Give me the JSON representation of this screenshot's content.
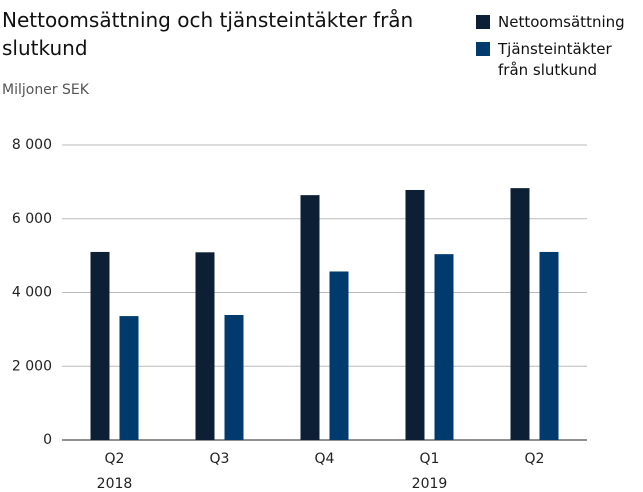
{
  "chart_data": {
    "type": "bar",
    "title": "Nettoomsättning och tjänsteintäkter från slutkund",
    "subtitle": "Miljoner SEK",
    "categories": [
      "Q2",
      "Q3",
      "Q4",
      "Q1",
      "Q2"
    ],
    "year_labels": [
      "2018",
      null,
      null,
      "2019",
      null
    ],
    "series": [
      {
        "name": "Nettoomsättning",
        "color": "#0c1f35",
        "values": [
          5100,
          5090,
          6640,
          6780,
          6830
        ]
      },
      {
        "name": "Tjänsteintäkter från slutkund",
        "color": "#013a6c",
        "values": [
          3360,
          3390,
          4570,
          5040,
          5100
        ]
      }
    ],
    "ylim": [
      0,
      8000
    ],
    "yticks": [
      0,
      {
        "value": 2000,
        "label": "2 000"
      },
      {
        "value": 4000,
        "label": "4 000"
      },
      {
        "value": 6000,
        "label": "6 000"
      },
      {
        "value": 8000,
        "label": "8 000"
      }
    ],
    "grid": true,
    "legend": "top-right"
  }
}
